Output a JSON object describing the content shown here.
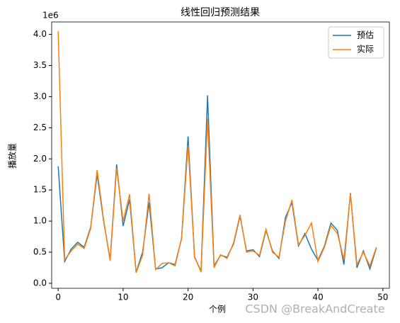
{
  "chart_data": {
    "type": "line",
    "title": "线性回归预测结果",
    "x_label": "个例",
    "y_label": "播放量",
    "y_offset_label": "1e6",
    "watermark": "CSDN @BreakAndCreate",
    "x": [
      0,
      1,
      2,
      3,
      4,
      5,
      6,
      7,
      8,
      9,
      10,
      11,
      12,
      13,
      14,
      15,
      16,
      17,
      18,
      19,
      20,
      21,
      22,
      23,
      24,
      25,
      26,
      27,
      28,
      29,
      30,
      31,
      32,
      33,
      34,
      35,
      36,
      37,
      38,
      39,
      40,
      41,
      42,
      43,
      44,
      45,
      46,
      47,
      48,
      49
    ],
    "series": [
      {
        "name": "预估",
        "color": "#1f77b4",
        "values": [
          1.88,
          0.35,
          0.55,
          0.66,
          0.58,
          0.9,
          1.75,
          1.0,
          0.38,
          1.91,
          0.92,
          1.35,
          0.18,
          0.5,
          1.3,
          0.23,
          0.25,
          0.33,
          0.3,
          0.72,
          2.36,
          0.42,
          0.2,
          3.02,
          0.28,
          0.45,
          0.42,
          0.63,
          1.08,
          0.52,
          0.54,
          0.43,
          0.85,
          0.52,
          0.4,
          1.06,
          1.3,
          0.6,
          0.8,
          0.55,
          0.37,
          0.6,
          0.97,
          0.85,
          0.3,
          1.45,
          0.25,
          0.52,
          0.23,
          0.57
        ]
      },
      {
        "name": "实际",
        "color": "#ff7f0e",
        "values": [
          4.05,
          0.38,
          0.52,
          0.63,
          0.56,
          0.88,
          1.82,
          1.02,
          0.36,
          1.85,
          1.0,
          1.43,
          0.17,
          0.45,
          1.44,
          0.22,
          0.32,
          0.33,
          0.28,
          0.72,
          2.22,
          0.43,
          0.18,
          2.65,
          0.25,
          0.46,
          0.4,
          0.65,
          1.1,
          0.5,
          0.52,
          0.45,
          0.87,
          0.5,
          0.42,
          1.0,
          1.34,
          0.62,
          0.77,
          0.97,
          0.35,
          0.58,
          0.93,
          0.8,
          0.38,
          1.44,
          0.3,
          0.5,
          0.28,
          0.58
        ]
      }
    ],
    "xlim": [
      -1,
      51
    ],
    "xticks": [
      0,
      10,
      20,
      30,
      40,
      50
    ],
    "ylim": [
      -0.08,
      4.2
    ],
    "yticks": [
      {
        "value": 0,
        "label": "0.0"
      },
      {
        "value": 0.5,
        "label": "0.5"
      },
      {
        "value": 1,
        "label": "1.0"
      },
      {
        "value": 1.5,
        "label": "1.5"
      },
      {
        "value": 2,
        "label": "2.0"
      },
      {
        "value": 2.5,
        "label": "2.5"
      },
      {
        "value": 3,
        "label": "3.0"
      },
      {
        "value": 3.5,
        "label": "3.5"
      },
      {
        "value": 4,
        "label": "4.0"
      }
    ],
    "legend": "upper right",
    "grid": false
  }
}
